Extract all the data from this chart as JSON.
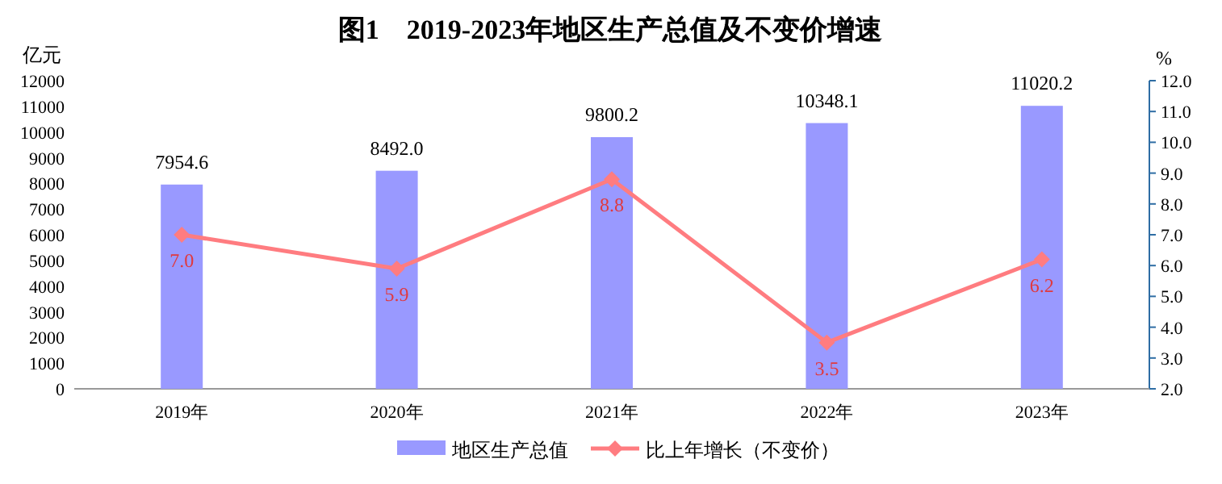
{
  "chart_data": {
    "type": "bar",
    "title": "图1　2019-2023年地区生产总值及不变价增速",
    "ylabel": "亿元",
    "y2label": "%",
    "categories": [
      "2019年",
      "2020年",
      "2021年",
      "2022年",
      "2023年"
    ],
    "series": [
      {
        "name": "地区生产总值",
        "color": "#9999ff",
        "values": [
          7954.6,
          8492.0,
          9800.2,
          10348.1,
          11020.2
        ],
        "value_labels": [
          "7954.6",
          "8492.0",
          "9800.2",
          "10348.1",
          "11020.2"
        ]
      },
      {
        "name": "比上年增长（不变价）",
        "type": "line",
        "axis": "y2",
        "color": "#ff7c80",
        "values": [
          7.0,
          5.9,
          8.8,
          3.5,
          6.2
        ],
        "value_labels": [
          "7.0",
          "5.9",
          "8.8",
          "3.5",
          "6.2"
        ]
      }
    ],
    "ylim": [
      0,
      12000
    ],
    "yticks": [
      0,
      1000,
      2000,
      3000,
      4000,
      5000,
      6000,
      7000,
      8000,
      9000,
      10000,
      11000,
      12000
    ],
    "y2lim": [
      2,
      12
    ],
    "y2ticks": [
      {
        "value": 2,
        "label": "2.0"
      },
      {
        "value": 3,
        "label": "3.0"
      },
      {
        "value": 4,
        "label": "4.0"
      },
      {
        "value": 5,
        "label": "5.0"
      },
      {
        "value": 6,
        "label": "6.0"
      },
      {
        "value": 7,
        "label": "7.0"
      },
      {
        "value": 8,
        "label": "8.0"
      },
      {
        "value": 9,
        "label": "9.0"
      },
      {
        "value": 10,
        "label": "10.0"
      },
      {
        "value": 11,
        "label": "11.0"
      },
      {
        "value": 12,
        "label": "12.0"
      }
    ],
    "legend": "bottom",
    "marker": "diamond",
    "line_style": "solid"
  }
}
